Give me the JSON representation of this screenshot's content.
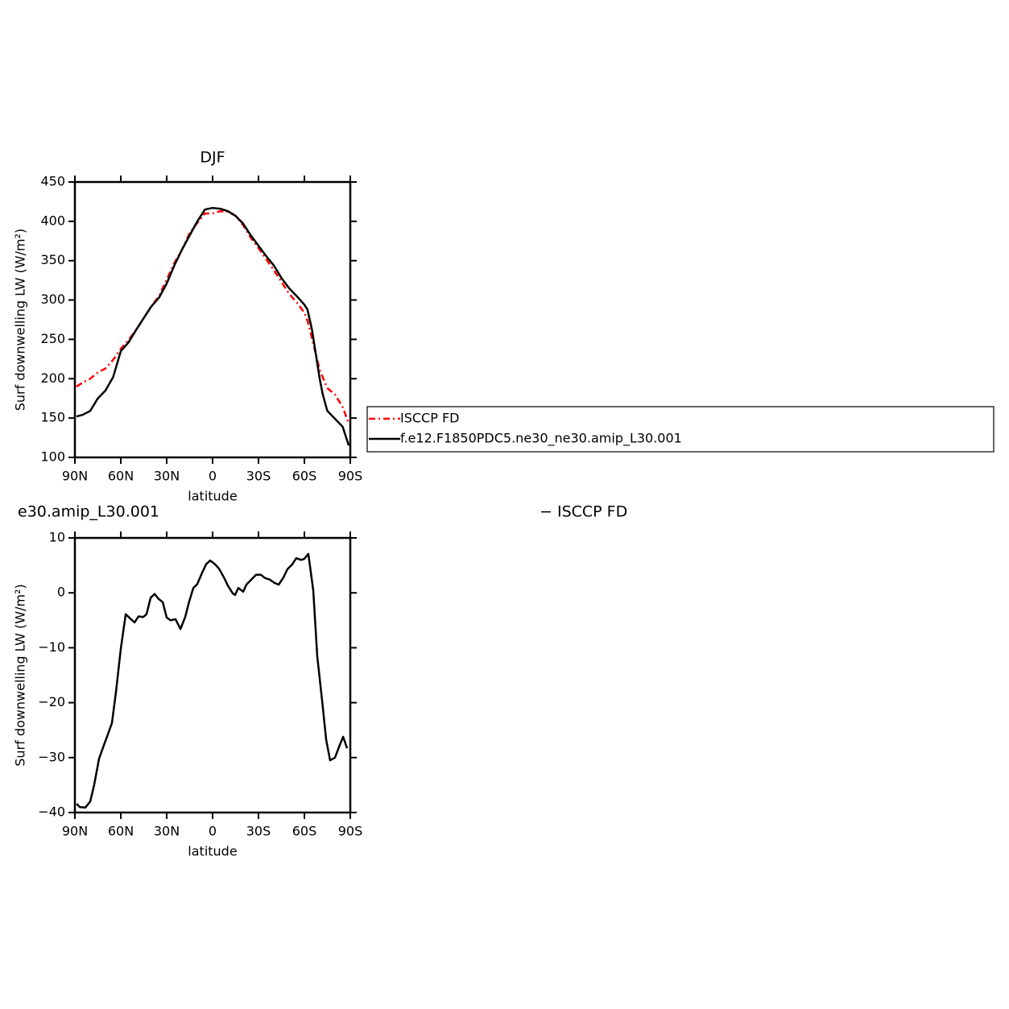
{
  "chart_data": [
    {
      "type": "line",
      "title": "DJF",
      "xlabel": "latitude",
      "ylabel": "Surf downwelling LW (W/m²)",
      "xlim": [
        90,
        -90
      ],
      "xticks": [
        {
          "value": 90,
          "label": "90N"
        },
        {
          "value": 60,
          "label": "60N"
        },
        {
          "value": 30,
          "label": "30N"
        },
        0,
        {
          "value": -30,
          "label": "30S"
        },
        {
          "value": -60,
          "label": "60S"
        },
        {
          "value": -90,
          "label": "90S"
        }
      ],
      "ylim": [
        100,
        450
      ],
      "yticks": [
        100,
        150,
        200,
        250,
        300,
        350,
        400,
        450
      ],
      "series": [
        {
          "name": "ISCCP FD",
          "color": "#ff0000",
          "dashed": true,
          "x": [
            89,
            85,
            80,
            75,
            70,
            65,
            60,
            55,
            50,
            45,
            40,
            35,
            30,
            25,
            20,
            15,
            10,
            5,
            0,
            -5,
            -10,
            -15,
            -20,
            -25,
            -30,
            -35,
            -40,
            -45,
            -50,
            -55,
            -60,
            -62,
            -65,
            -70,
            -75,
            -80,
            -85,
            -89
          ],
          "values": [
            190,
            195,
            200,
            208,
            213,
            224,
            238,
            249,
            262,
            277,
            292,
            305,
            326,
            347,
            364,
            385,
            398,
            410,
            410,
            413,
            412,
            407,
            395,
            379,
            366,
            352,
            338,
            323,
            308,
            297,
            284,
            274,
            251,
            211,
            188,
            180,
            164,
            143
          ]
        },
        {
          "name": "f.e12.F1850PDC5.ne30_ne30.amip_L30.001",
          "color": "#000000",
          "dashed": false,
          "x": [
            89,
            85,
            80,
            75,
            70,
            65,
            60,
            55,
            50,
            45,
            40,
            35,
            30,
            25,
            20,
            15,
            10,
            5,
            0,
            -5,
            -10,
            -15,
            -20,
            -25,
            -30,
            -35,
            -40,
            -45,
            -50,
            -55,
            -60,
            -62,
            -65,
            -70,
            -72,
            -75,
            -80,
            -85,
            -89
          ],
          "values": [
            152,
            154,
            159,
            175,
            185,
            202,
            235,
            246,
            262,
            277,
            292,
            303,
            321,
            344,
            364,
            382,
            400,
            415,
            417,
            416,
            413,
            407,
            397,
            382,
            369,
            356,
            344,
            328,
            315,
            305,
            294,
            288,
            262,
            200,
            180,
            159,
            149,
            139,
            115
          ]
        }
      ]
    },
    {
      "type": "line",
      "title": "e30.amip_L30.001",
      "right_title": "− ISCCP FD",
      "xlabel": "latitude",
      "ylabel": "Surf downwelling LW (W/m²)",
      "xlim": [
        90,
        -90
      ],
      "xticks": [
        {
          "value": 90,
          "label": "90N"
        },
        {
          "value": 60,
          "label": "60N"
        },
        {
          "value": 30,
          "label": "30N"
        },
        0,
        {
          "value": -30,
          "label": "30S"
        },
        {
          "value": -60,
          "label": "60S"
        },
        {
          "value": -90,
          "label": "90S"
        }
      ],
      "ylim": [
        -40,
        10
      ],
      "yticks": [
        {
          "value": -40,
          "label": "−40"
        },
        {
          "value": -30,
          "label": "−30"
        },
        {
          "value": -20,
          "label": "−20"
        },
        {
          "value": -10,
          "label": "−10"
        },
        0,
        10
      ],
      "color": "#000000",
      "x": [
        88.9,
        86.8,
        83.2,
        80,
        77.4,
        74.2,
        71,
        69,
        65.8,
        63.2,
        60,
        56.8,
        53.7,
        51,
        48.4,
        45.3,
        43.2,
        40.5,
        37.9,
        35.3,
        32.6,
        30,
        27.4,
        24.2,
        21,
        17.9,
        15.3,
        12.6,
        10,
        6.8,
        4.2,
        1.6,
        -1.6,
        -4.2,
        -7.4,
        -10,
        -13.2,
        -14.7,
        -16.8,
        -20,
        -22.1,
        -25.3,
        -28.4,
        -31.6,
        -34.2,
        -37.4,
        -40.5,
        -43.2,
        -46.3,
        -48.9,
        -52.1,
        -54.7,
        -57.9,
        -60,
        -62.6,
        -65.8,
        -68.4,
        -71.6,
        -74.2,
        -76.8,
        -80,
        -82.6,
        -85.3,
        -87.9
      ],
      "values": [
        -38.4,
        -39,
        -39.1,
        -38,
        -35,
        -30.2,
        -27.7,
        -26.2,
        -23.7,
        -18.2,
        -10.2,
        -3.9,
        -4.7,
        -5.4,
        -4.3,
        -4.4,
        -3.9,
        -0.9,
        -0.2,
        -1.1,
        -1.7,
        -4.5,
        -5,
        -4.8,
        -6.6,
        -4.4,
        -1.6,
        0.9,
        1.6,
        3.7,
        5.2,
        5.9,
        5.2,
        4.4,
        2.8,
        1.3,
        -0.1,
        -0.4,
        0.9,
        0.2,
        1.5,
        2.4,
        3.3,
        3.3,
        2.7,
        2.4,
        1.8,
        1.5,
        2.8,
        4.3,
        5.2,
        6.3,
        6.0,
        6.2,
        7.1,
        0.5,
        -11.6,
        -19.6,
        -26.7,
        -30.5,
        -30,
        -28.1,
        -26.2,
        -28.3
      ]
    }
  ]
}
